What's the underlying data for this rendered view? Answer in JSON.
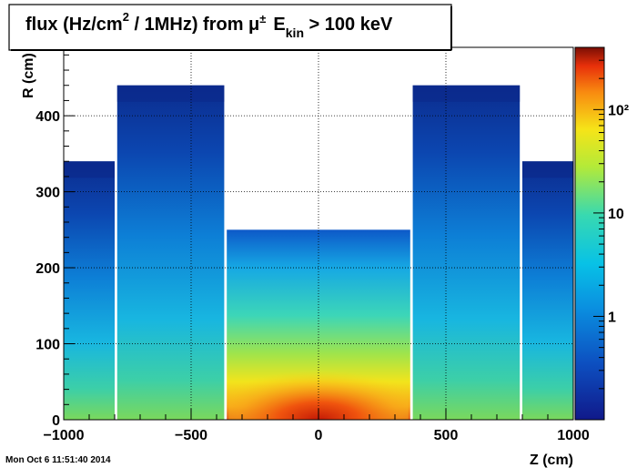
{
  "chart_data": {
    "type": "heatmap",
    "title": {
      "main": "flux (Hz/cm",
      "sup": "2",
      "mid": " / 1MHz) from  μ",
      "sup2": "±",
      "e": "E",
      "sub": "kin",
      "tail": " > 100 keV"
    },
    "xlabel": "Z (cm)",
    "ylabel": "R (cm)",
    "xlim": [
      -1000,
      1000
    ],
    "ylim": [
      0,
      490
    ],
    "x_ticks": [
      -1000,
      -500,
      0,
      500,
      1000
    ],
    "x_tick_labels": [
      "−1000",
      "−500",
      "0",
      "500",
      "1000"
    ],
    "y_ticks": [
      0,
      100,
      200,
      300,
      400
    ],
    "y_tick_labels": [
      "0",
      "100",
      "200",
      "300",
      "400"
    ],
    "grid": true,
    "log_z": true,
    "zlim": [
      0.1,
      400
    ],
    "z_tick_labels": [
      "1",
      "10",
      "10²"
    ],
    "regions": [
      {
        "name": "outer-low-left",
        "z": [
          -1000,
          -800
        ],
        "r": [
          0,
          340
        ]
      },
      {
        "name": "outer-high-left",
        "z": [
          -790,
          -370
        ],
        "r": [
          0,
          440
        ]
      },
      {
        "name": "central-barrel",
        "z": [
          -360,
          360
        ],
        "r": [
          0,
          250
        ]
      },
      {
        "name": "outer-high-right",
        "z": [
          370,
          790
        ],
        "r": [
          0,
          440
        ]
      },
      {
        "name": "outer-low-right",
        "z": [
          800,
          1000
        ],
        "r": [
          0,
          340
        ]
      }
    ],
    "hot_region": {
      "z": [
        -210,
        210
      ],
      "r": [
        0,
        40
      ],
      "max_flux": 400
    }
  },
  "footer_timestamp": "Mon Oct  6 11:51:40 2014"
}
